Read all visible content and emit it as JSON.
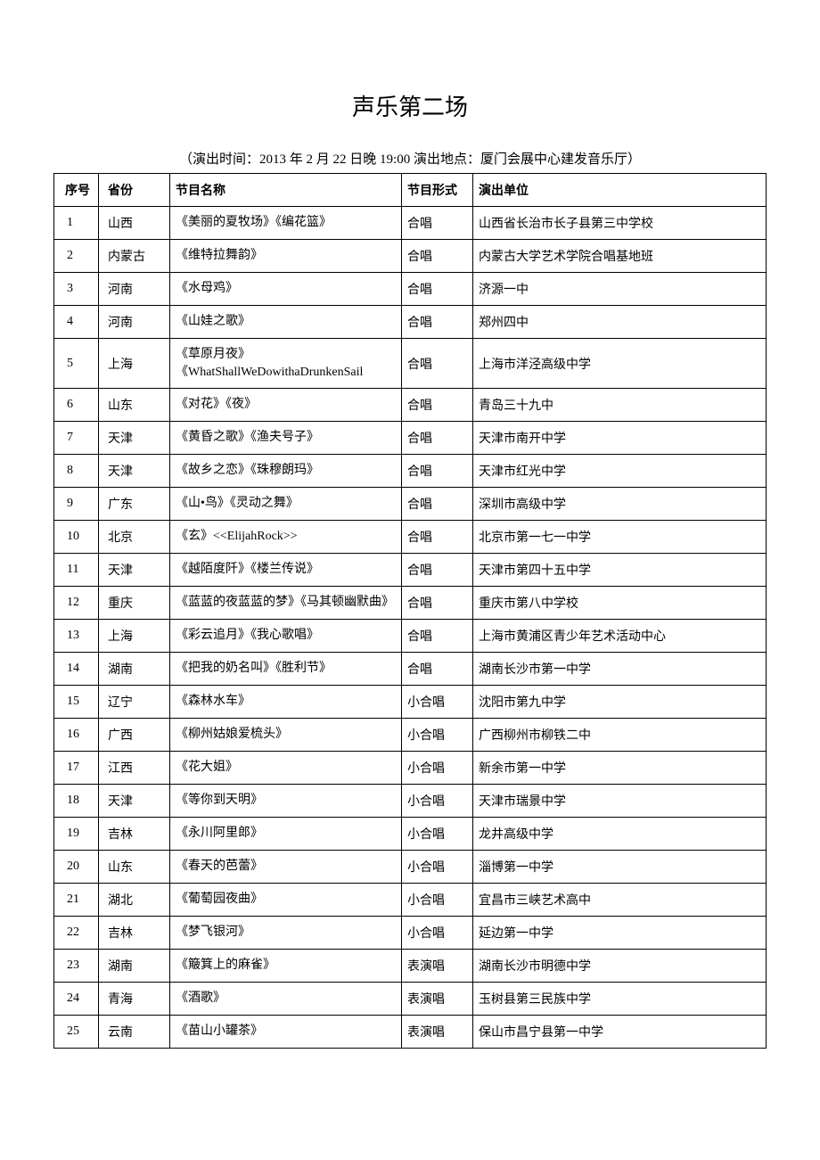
{
  "title": "声乐第二场",
  "subtitle": "（演出时间：2013 年 2 月 22 日晚 19:00 演出地点：厦门会展中心建发音乐厅）",
  "columns": [
    "序号",
    "省份",
    "节目名称",
    "节目形式",
    "演出单位"
  ],
  "rows": [
    [
      "1",
      "山西",
      "《美丽的夏牧场》《编花篮》",
      "合唱",
      "山西省长治市长子县第三中学校"
    ],
    [
      "2",
      "内蒙古",
      "《维特拉舞韵》",
      "合唱",
      "内蒙古大学艺术学院合唱基地班"
    ],
    [
      "3",
      "河南",
      "《水母鸡》",
      "合唱",
      "济源一中"
    ],
    [
      "4",
      "河南",
      "《山娃之歌》",
      "合唱",
      "郑州四中"
    ],
    [
      "5",
      "上海",
      "《草原月夜》《WhatShallWeDowithaDrunkenSail",
      "合唱",
      "上海市洋泾高级中学"
    ],
    [
      "6",
      "山东",
      "《对花》《夜》",
      "合唱",
      "青岛三十九中"
    ],
    [
      "7",
      "天津",
      "《黄昏之歌》《渔夫号子》",
      "合唱",
      "天津市南开中学"
    ],
    [
      "8",
      "天津",
      "《故乡之恋》《珠穆朗玛》",
      "合唱",
      "天津市红光中学"
    ],
    [
      "9",
      "广东",
      "《山•鸟》《灵动之舞》",
      "合唱",
      "深圳市高级中学"
    ],
    [
      "10",
      "北京",
      "《玄》<<ElijahRock>>",
      "合唱",
      "北京市第一七一中学"
    ],
    [
      "11",
      "天津",
      "《越陌度阡》《楼兰传说》",
      "合唱",
      "天津市第四十五中学"
    ],
    [
      "12",
      "重庆",
      "《蓝蓝的夜蓝蓝的梦》《马其顿幽默曲》",
      "合唱",
      "重庆市第八中学校"
    ],
    [
      "13",
      "上海",
      "《彩云追月》《我心歌唱》",
      "合唱",
      "上海市黄浦区青少年艺术活动中心"
    ],
    [
      "14",
      "湖南",
      "《把我的奶名叫》《胜利节》",
      "合唱",
      "湖南长沙市第一中学"
    ],
    [
      "15",
      "辽宁",
      "《森林水车》",
      "小合唱",
      "沈阳市第九中学"
    ],
    [
      "16",
      "广西",
      "《柳州姑娘爱梳头》",
      "小合唱",
      "广西柳州市柳铁二中"
    ],
    [
      "17",
      "江西",
      "《花大姐》",
      "小合唱",
      "新余市第一中学"
    ],
    [
      "18",
      "天津",
      "《等你到天明》",
      "小合唱",
      "天津市瑞景中学"
    ],
    [
      "19",
      "吉林",
      "《永川阿里郎》",
      "小合唱",
      "龙井高级中学"
    ],
    [
      "20",
      "山东",
      "《春天的芭蕾》",
      "小合唱",
      "淄博第一中学"
    ],
    [
      "21",
      "湖北",
      "《葡萄园夜曲》",
      "小合唱",
      "宜昌市三峡艺术高中"
    ],
    [
      "22",
      "吉林",
      "《梦飞银河》",
      "小合唱",
      "延边第一中学"
    ],
    [
      "23",
      "湖南",
      "《簸箕上的麻雀》",
      "表演唱",
      "湖南长沙市明德中学"
    ],
    [
      "24",
      "青海",
      "《酒歌》",
      "表演唱",
      "玉树县第三民族中学"
    ],
    [
      "25",
      "云南",
      "《苗山小罐茶》",
      "表演唱",
      "保山市昌宁县第一中学"
    ]
  ]
}
